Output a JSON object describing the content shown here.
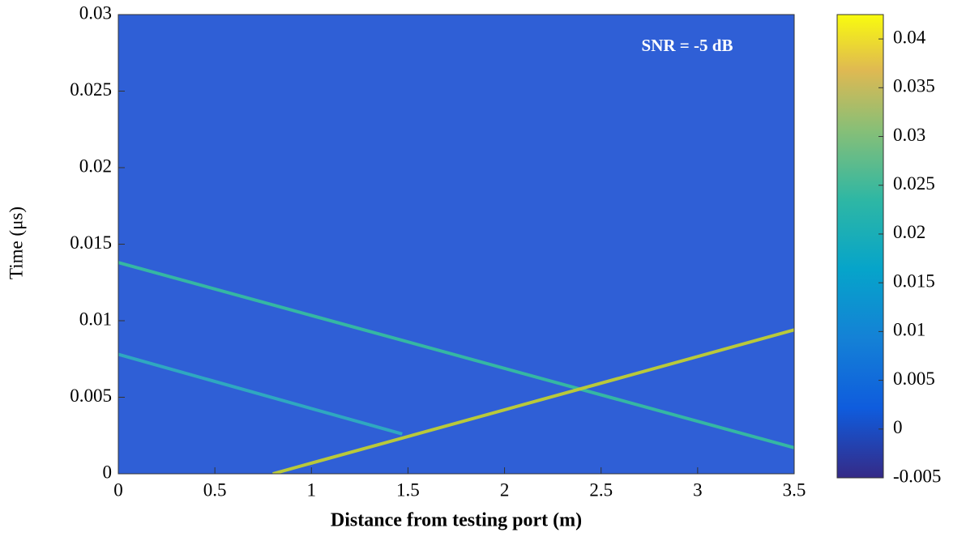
{
  "chart_data": {
    "type": "heatmap",
    "xlabel": "Distance from testing port (m)",
    "ylabel": "Time (μs)",
    "annotation": "SNR = -5 dB",
    "xlim": [
      0,
      3.5
    ],
    "xticks": [
      0,
      0.5,
      1,
      1.5,
      2,
      2.5,
      3,
      3.5
    ],
    "ylim": [
      0,
      0.03
    ],
    "yticks": [
      0,
      0.005,
      0.01,
      0.015,
      0.02,
      0.025,
      0.03
    ],
    "clim": [
      -0.005,
      0.0425
    ],
    "cticks": [
      -0.005,
      0,
      0.005,
      0.01,
      0.015,
      0.02,
      0.025,
      0.03,
      0.035,
      0.04
    ],
    "background": "#2f5fd6",
    "series": [
      {
        "color": "#35b7a3",
        "x": [
          0,
          3.5
        ],
        "values": [
          0.0138,
          0.0017
        ]
      },
      {
        "color": "#b9c93a",
        "x": [
          0.8,
          3.5
        ],
        "values": [
          0,
          0.0094
        ]
      },
      {
        "color": "#2fa8c0",
        "x": [
          0,
          1.47
        ],
        "values": [
          0.0078,
          0.0026
        ]
      }
    ]
  }
}
